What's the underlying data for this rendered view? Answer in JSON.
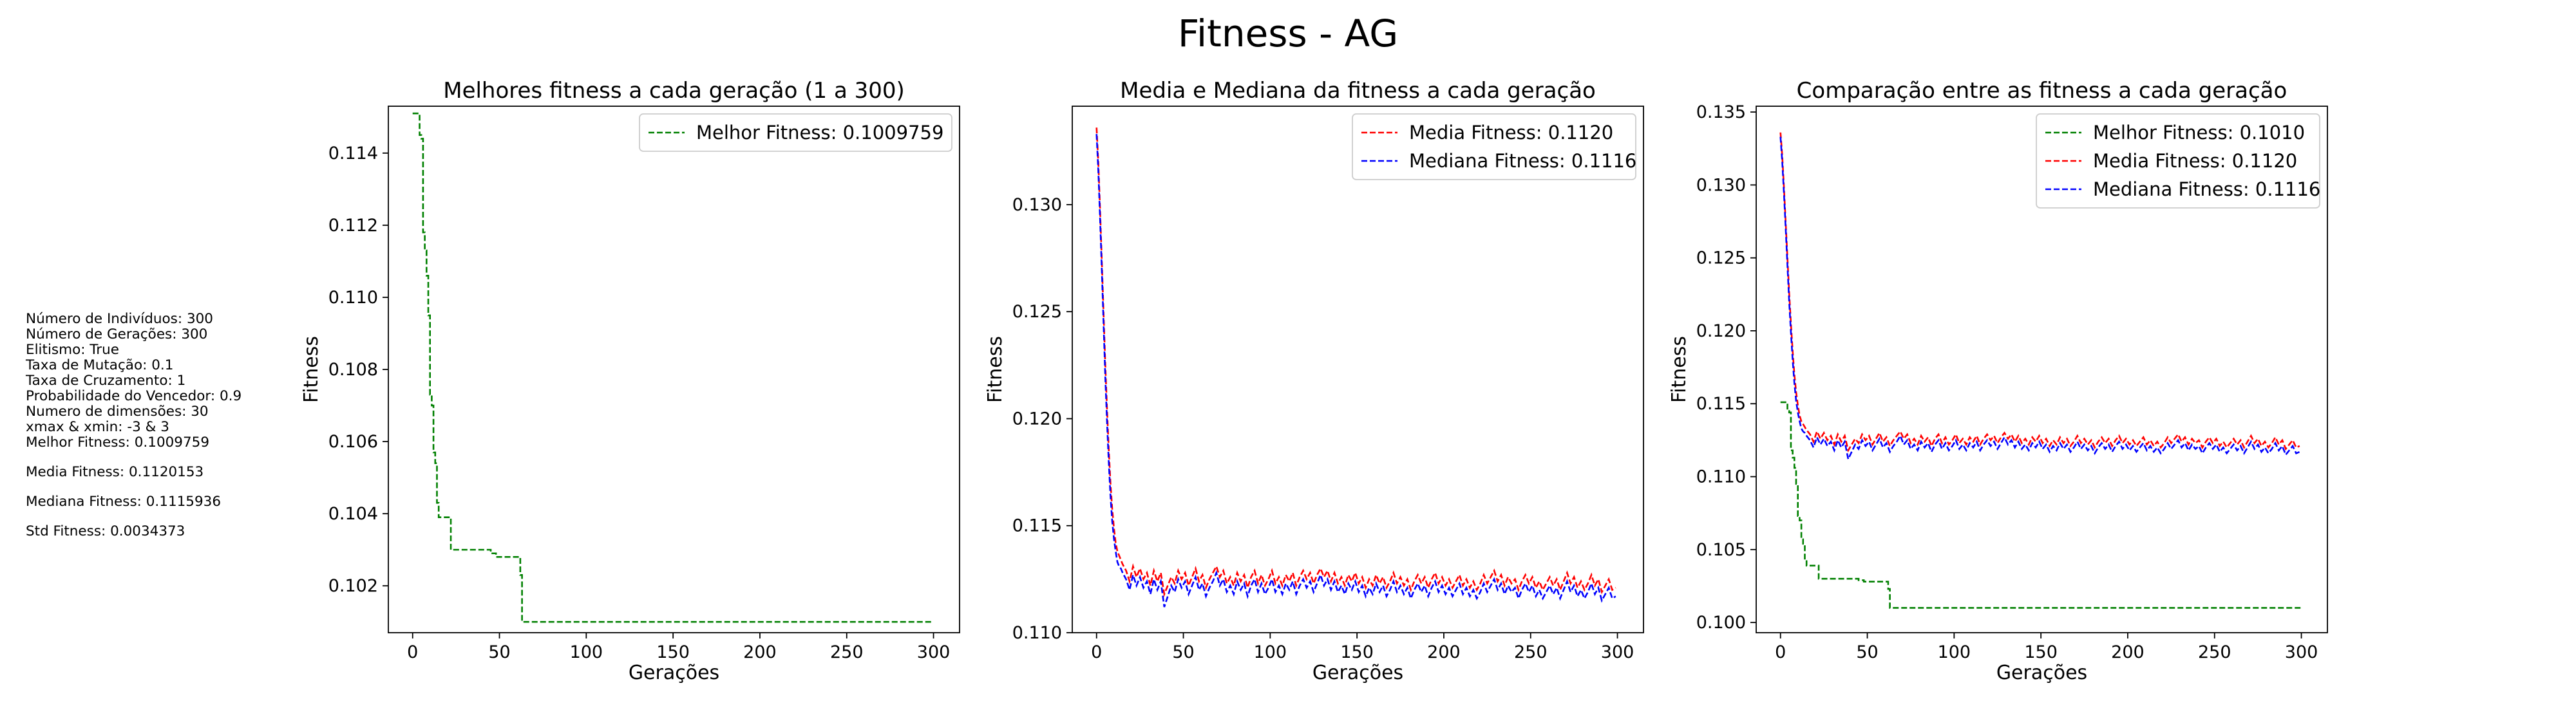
{
  "figure": {
    "suptitle": "Fitness - AG"
  },
  "params_text": [
    "Número de Indivíduos: 300",
    "Número de Gerações: 300",
    "Elitismo: True",
    "Taxa de Mutação: 0.1",
    "Taxa de Cruzamento: 1",
    "Probabilidade do Vencedor: 0.9",
    "Numero de dimensões: 30",
    "xmax & xmin: -3 & 3",
    "Melhor Fitness: 0.1009759",
    "Media Fitness: 0.1120153",
    "Mediana Fitness: 0.1115936",
    "Std Fitness: 0.0034373"
  ],
  "chart_data": [
    {
      "type": "line",
      "title": "Melhores fitness a cada geração (1 a 300)",
      "xlabel": "Gerações",
      "ylabel": "Fitness",
      "xlim": [
        -14,
        315
      ],
      "ylim": [
        100.7,
        115.3
      ],
      "x_ticks": [
        0,
        50,
        100,
        150,
        200,
        250,
        300
      ],
      "y_ticks": [
        0.102,
        0.104,
        0.106,
        0.108,
        0.11,
        0.112,
        0.114
      ],
      "grid": false,
      "legend_position": "top-right",
      "series": [
        {
          "name": "Melhor Fitness: 0.1009759",
          "color": "#008000",
          "dash": "dashed",
          "kind": "best"
        }
      ]
    },
    {
      "type": "line",
      "title": "Media e Mediana da fitness a cada geração",
      "xlabel": "Gerações",
      "ylabel": "Fitness",
      "xlim": [
        -14,
        315
      ],
      "ylim": [
        110.0,
        134.6
      ],
      "x_ticks": [
        0,
        50,
        100,
        150,
        200,
        250,
        300
      ],
      "y_ticks": [
        0.11,
        0.115,
        0.12,
        0.125,
        0.13
      ],
      "grid": false,
      "legend_position": "top-right",
      "series": [
        {
          "name": "Media Fitness: 0.1120",
          "color": "#ff0000",
          "dash": "dashed",
          "kind": "mean"
        },
        {
          "name": "Mediana Fitness: 0.1116",
          "color": "#0000ff",
          "dash": "dashed",
          "kind": "median"
        }
      ]
    },
    {
      "type": "line",
      "title": "Comparação entre as fitness a cada geração",
      "xlabel": "Gerações",
      "ylabel": "Fitness",
      "xlim": [
        -14,
        315
      ],
      "ylim": [
        99.3,
        135.4
      ],
      "x_ticks": [
        0,
        50,
        100,
        150,
        200,
        250,
        300
      ],
      "y_ticks": [
        0.1,
        0.105,
        0.11,
        0.115,
        0.12,
        0.125,
        0.13,
        0.135
      ],
      "grid": false,
      "legend_position": "top-right",
      "series": [
        {
          "name": "Melhor Fitness: 0.1010",
          "color": "#008000",
          "dash": "dashed",
          "kind": "best"
        },
        {
          "name": "Media Fitness: 0.1120",
          "color": "#ff0000",
          "dash": "dashed",
          "kind": "mean"
        },
        {
          "name": "Mediana Fitness: 0.1116",
          "color": "#0000ff",
          "dash": "dashed",
          "kind": "median"
        }
      ]
    }
  ],
  "series_data": {
    "best": [
      [
        0,
        115.1
      ],
      [
        3,
        115.1
      ],
      [
        4,
        114.5
      ],
      [
        5,
        114.4
      ],
      [
        6,
        111.8
      ],
      [
        7,
        111.3
      ],
      [
        8,
        110.6
      ],
      [
        9,
        109.5
      ],
      [
        10,
        107.3
      ],
      [
        11,
        107.0
      ],
      [
        12,
        105.7
      ],
      [
        13,
        105.4
      ],
      [
        14,
        104.3
      ],
      [
        15,
        103.9
      ],
      [
        20,
        103.9
      ],
      [
        22,
        103.0
      ],
      [
        43,
        103.0
      ],
      [
        45,
        102.9
      ],
      [
        48,
        102.8
      ],
      [
        61,
        102.8
      ],
      [
        62,
        102.3
      ],
      [
        63,
        101.0
      ],
      [
        300,
        101.0
      ]
    ],
    "mean": [
      [
        0,
        133.6
      ],
      [
        1,
        132.0
      ],
      [
        2,
        129.8
      ],
      [
        3,
        127.4
      ],
      [
        4,
        125.0
      ],
      [
        5,
        122.6
      ],
      [
        6,
        120.5
      ],
      [
        7,
        118.6
      ],
      [
        8,
        117.0
      ],
      [
        9,
        115.8
      ],
      [
        10,
        114.9
      ],
      [
        11,
        114.2
      ],
      [
        12,
        113.8
      ],
      [
        13,
        113.6
      ],
      [
        14,
        113.4
      ],
      [
        15,
        113.2
      ],
      [
        17,
        112.9
      ],
      [
        19,
        112.4
      ],
      [
        21,
        113.1
      ],
      [
        23,
        112.6
      ],
      [
        25,
        113.0
      ],
      [
        27,
        112.5
      ],
      [
        29,
        112.8
      ],
      [
        31,
        112.2
      ],
      [
        33,
        112.9
      ],
      [
        35,
        112.4
      ],
      [
        37,
        112.8
      ],
      [
        39,
        111.8
      ],
      [
        41,
        112.2
      ],
      [
        43,
        112.6
      ],
      [
        45,
        112.3
      ],
      [
        47,
        112.9
      ],
      [
        49,
        112.5
      ],
      [
        51,
        112.8
      ],
      [
        53,
        112.2
      ],
      [
        55,
        112.6
      ],
      [
        57,
        113.0
      ],
      [
        59,
        112.4
      ],
      [
        61,
        112.7
      ],
      [
        63,
        112.1
      ],
      [
        65,
        112.5
      ],
      [
        67,
        112.8
      ],
      [
        69,
        113.1
      ],
      [
        71,
        112.6
      ],
      [
        73,
        112.9
      ],
      [
        75,
        112.3
      ],
      [
        77,
        112.6
      ],
      [
        79,
        112.2
      ],
      [
        81,
        112.8
      ],
      [
        83,
        112.4
      ],
      [
        85,
        112.7
      ],
      [
        87,
        112.1
      ],
      [
        89,
        112.6
      ],
      [
        91,
        112.9
      ],
      [
        93,
        112.3
      ],
      [
        95,
        112.7
      ],
      [
        97,
        112.2
      ],
      [
        99,
        112.5
      ],
      [
        101,
        112.9
      ],
      [
        103,
        112.3
      ],
      [
        105,
        112.6
      ],
      [
        107,
        112.2
      ],
      [
        109,
        112.7
      ],
      [
        111,
        112.4
      ],
      [
        113,
        112.8
      ],
      [
        115,
        112.2
      ],
      [
        117,
        112.6
      ],
      [
        119,
        112.9
      ],
      [
        121,
        112.5
      ],
      [
        123,
        112.8
      ],
      [
        125,
        112.3
      ],
      [
        127,
        112.7
      ],
      [
        129,
        113.0
      ],
      [
        131,
        112.6
      ],
      [
        133,
        112.9
      ],
      [
        135,
        112.4
      ],
      [
        137,
        112.8
      ],
      [
        139,
        112.3
      ],
      [
        141,
        112.6
      ],
      [
        143,
        112.2
      ],
      [
        145,
        112.7
      ],
      [
        147,
        112.4
      ],
      [
        149,
        112.8
      ],
      [
        151,
        112.3
      ],
      [
        153,
        112.6
      ],
      [
        155,
        112.1
      ],
      [
        157,
        112.5
      ],
      [
        159,
        112.2
      ],
      [
        161,
        112.7
      ],
      [
        163,
        112.3
      ],
      [
        165,
        112.6
      ],
      [
        167,
        112.1
      ],
      [
        169,
        112.4
      ],
      [
        171,
        112.8
      ],
      [
        173,
        112.3
      ],
      [
        175,
        112.6
      ],
      [
        177,
        112.2
      ],
      [
        179,
        112.5
      ],
      [
        181,
        112.0
      ],
      [
        183,
        112.4
      ],
      [
        185,
        112.7
      ],
      [
        187,
        112.3
      ],
      [
        189,
        112.6
      ],
      [
        191,
        112.1
      ],
      [
        193,
        112.5
      ],
      [
        195,
        112.8
      ],
      [
        197,
        112.3
      ],
      [
        199,
        112.6
      ],
      [
        201,
        112.2
      ],
      [
        203,
        112.5
      ],
      [
        205,
        112.1
      ],
      [
        207,
        112.4
      ],
      [
        209,
        112.7
      ],
      [
        211,
        112.2
      ],
      [
        213,
        112.5
      ],
      [
        215,
        112.1
      ],
      [
        217,
        112.4
      ],
      [
        219,
        112.0
      ],
      [
        221,
        112.3
      ],
      [
        223,
        112.7
      ],
      [
        225,
        112.3
      ],
      [
        227,
        112.6
      ],
      [
        229,
        112.9
      ],
      [
        231,
        112.4
      ],
      [
        233,
        112.7
      ],
      [
        235,
        112.2
      ],
      [
        237,
        112.6
      ],
      [
        239,
        112.3
      ],
      [
        241,
        112.5
      ],
      [
        243,
        112.0
      ],
      [
        245,
        112.4
      ],
      [
        247,
        112.7
      ],
      [
        249,
        112.3
      ],
      [
        251,
        112.6
      ],
      [
        253,
        112.1
      ],
      [
        255,
        112.4
      ],
      [
        257,
        112.0
      ],
      [
        259,
        112.3
      ],
      [
        261,
        112.6
      ],
      [
        263,
        112.2
      ],
      [
        265,
        112.5
      ],
      [
        267,
        112.0
      ],
      [
        269,
        112.4
      ],
      [
        271,
        112.8
      ],
      [
        273,
        112.3
      ],
      [
        275,
        112.6
      ],
      [
        277,
        112.1
      ],
      [
        279,
        112.4
      ],
      [
        281,
        112.0
      ],
      [
        283,
        112.3
      ],
      [
        285,
        112.7
      ],
      [
        287,
        112.2
      ],
      [
        289,
        112.5
      ],
      [
        291,
        111.9
      ],
      [
        293,
        112.2
      ],
      [
        295,
        112.5
      ],
      [
        297,
        112.0
      ],
      [
        299,
        112.1
      ]
    ],
    "median": [
      [
        0,
        133.3
      ],
      [
        1,
        131.6
      ],
      [
        2,
        129.4
      ],
      [
        3,
        127.0
      ],
      [
        4,
        124.5
      ],
      [
        5,
        122.0
      ],
      [
        6,
        119.9
      ],
      [
        7,
        118.0
      ],
      [
        8,
        116.4
      ],
      [
        9,
        115.2
      ],
      [
        10,
        114.4
      ],
      [
        11,
        113.8
      ],
      [
        12,
        113.3
      ],
      [
        13,
        113.1
      ],
      [
        14,
        113.0
      ],
      [
        15,
        112.8
      ],
      [
        17,
        112.5
      ],
      [
        19,
        112.0
      ],
      [
        21,
        112.7
      ],
      [
        23,
        112.2
      ],
      [
        25,
        112.6
      ],
      [
        27,
        112.1
      ],
      [
        29,
        112.4
      ],
      [
        31,
        111.8
      ],
      [
        33,
        112.5
      ],
      [
        35,
        112.0
      ],
      [
        37,
        112.4
      ],
      [
        39,
        111.2
      ],
      [
        41,
        111.7
      ],
      [
        43,
        112.2
      ],
      [
        45,
        111.9
      ],
      [
        47,
        112.5
      ],
      [
        49,
        112.1
      ],
      [
        51,
        112.4
      ],
      [
        53,
        111.8
      ],
      [
        55,
        112.2
      ],
      [
        57,
        112.6
      ],
      [
        59,
        112.0
      ],
      [
        61,
        112.3
      ],
      [
        63,
        111.7
      ],
      [
        65,
        112.1
      ],
      [
        67,
        112.4
      ],
      [
        69,
        112.8
      ],
      [
        71,
        112.2
      ],
      [
        73,
        112.5
      ],
      [
        75,
        111.9
      ],
      [
        77,
        112.2
      ],
      [
        79,
        111.8
      ],
      [
        81,
        112.4
      ],
      [
        83,
        112.0
      ],
      [
        85,
        112.3
      ],
      [
        87,
        111.7
      ],
      [
        89,
        112.2
      ],
      [
        91,
        112.5
      ],
      [
        93,
        111.9
      ],
      [
        95,
        112.3
      ],
      [
        97,
        111.8
      ],
      [
        99,
        112.1
      ],
      [
        101,
        112.5
      ],
      [
        103,
        111.9
      ],
      [
        105,
        112.2
      ],
      [
        107,
        111.8
      ],
      [
        109,
        112.3
      ],
      [
        111,
        112.0
      ],
      [
        113,
        112.4
      ],
      [
        115,
        111.8
      ],
      [
        117,
        112.2
      ],
      [
        119,
        112.5
      ],
      [
        121,
        112.1
      ],
      [
        123,
        112.4
      ],
      [
        125,
        111.9
      ],
      [
        127,
        112.3
      ],
      [
        129,
        112.7
      ],
      [
        131,
        112.2
      ],
      [
        133,
        112.5
      ],
      [
        135,
        112.0
      ],
      [
        137,
        112.4
      ],
      [
        139,
        111.9
      ],
      [
        141,
        112.2
      ],
      [
        143,
        111.8
      ],
      [
        145,
        112.3
      ],
      [
        147,
        112.0
      ],
      [
        149,
        112.4
      ],
      [
        151,
        111.9
      ],
      [
        153,
        112.2
      ],
      [
        155,
        111.7
      ],
      [
        157,
        112.1
      ],
      [
        159,
        111.8
      ],
      [
        161,
        112.3
      ],
      [
        163,
        111.9
      ],
      [
        165,
        112.2
      ],
      [
        167,
        111.7
      ],
      [
        169,
        112.0
      ],
      [
        171,
        112.4
      ],
      [
        173,
        111.9
      ],
      [
        175,
        112.2
      ],
      [
        177,
        111.8
      ],
      [
        179,
        112.1
      ],
      [
        181,
        111.6
      ],
      [
        183,
        112.0
      ],
      [
        185,
        112.3
      ],
      [
        187,
        111.9
      ],
      [
        189,
        112.2
      ],
      [
        191,
        111.7
      ],
      [
        193,
        112.1
      ],
      [
        195,
        112.4
      ],
      [
        197,
        111.9
      ],
      [
        199,
        112.2
      ],
      [
        201,
        111.8
      ],
      [
        203,
        112.1
      ],
      [
        205,
        111.7
      ],
      [
        207,
        112.0
      ],
      [
        209,
        112.3
      ],
      [
        211,
        111.8
      ],
      [
        213,
        112.1
      ],
      [
        215,
        111.7
      ],
      [
        217,
        112.0
      ],
      [
        219,
        111.6
      ],
      [
        221,
        111.9
      ],
      [
        223,
        112.3
      ],
      [
        225,
        111.9
      ],
      [
        227,
        112.2
      ],
      [
        229,
        112.5
      ],
      [
        231,
        112.0
      ],
      [
        233,
        112.3
      ],
      [
        235,
        111.8
      ],
      [
        237,
        112.2
      ],
      [
        239,
        111.9
      ],
      [
        241,
        112.1
      ],
      [
        243,
        111.6
      ],
      [
        245,
        112.0
      ],
      [
        247,
        112.3
      ],
      [
        249,
        111.9
      ],
      [
        251,
        112.2
      ],
      [
        253,
        111.7
      ],
      [
        255,
        112.0
      ],
      [
        257,
        111.6
      ],
      [
        259,
        111.9
      ],
      [
        261,
        112.2
      ],
      [
        263,
        111.8
      ],
      [
        265,
        112.1
      ],
      [
        267,
        111.6
      ],
      [
        269,
        112.0
      ],
      [
        271,
        112.4
      ],
      [
        273,
        111.9
      ],
      [
        275,
        112.2
      ],
      [
        277,
        111.7
      ],
      [
        279,
        112.0
      ],
      [
        281,
        111.6
      ],
      [
        283,
        111.9
      ],
      [
        285,
        112.3
      ],
      [
        287,
        111.8
      ],
      [
        289,
        112.1
      ],
      [
        291,
        111.5
      ],
      [
        293,
        111.8
      ],
      [
        295,
        112.1
      ],
      [
        297,
        111.6
      ],
      [
        299,
        111.7
      ]
    ]
  }
}
